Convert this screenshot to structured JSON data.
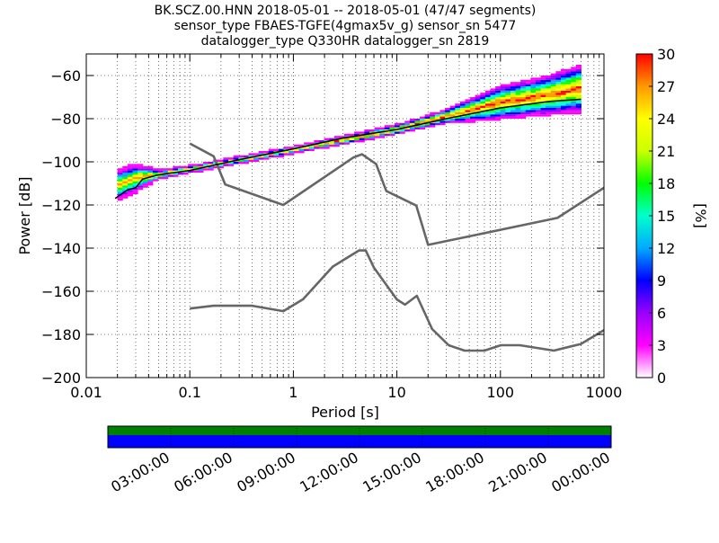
{
  "chart_data": {
    "type": "heatmap",
    "title_lines": [
      "BK.SCZ.00.HNN   2018-05-01 -- 2018-05-01  (47/47 segments)",
      "sensor_type FBAES-TGFE(4gmax5v_g) sensor_sn 5477",
      "datalogger_type Q330HR datalogger_sn 2819"
    ],
    "xlabel": "Period [s]",
    "ylabel": "Power [dB]",
    "xscale": "log",
    "xlim": [
      0.01,
      1000
    ],
    "ylim": [
      -200,
      -50
    ],
    "x_tick_labels": [
      "0.01",
      "0.1",
      "1",
      "10",
      "100",
      "1000"
    ],
    "x_tick_values": [
      0.01,
      0.1,
      1,
      10,
      100,
      1000
    ],
    "y_tick_labels": [
      "−200",
      "−180",
      "−160",
      "−140",
      "−120",
      "−100",
      "−80",
      "−60"
    ],
    "y_tick_values": [
      -200,
      -180,
      -160,
      -140,
      -120,
      -100,
      -80,
      -60
    ],
    "grid": "dotted, vertical at log minor ticks",
    "colorbar": {
      "label": "[%]",
      "range": [
        0,
        30
      ],
      "tick_labels": [
        "0",
        "3",
        "6",
        "9",
        "12",
        "15",
        "18",
        "21",
        "24",
        "27",
        "30"
      ],
      "tick_values": [
        0,
        3,
        6,
        9,
        12,
        15,
        18,
        21,
        24,
        27,
        30
      ],
      "colormap": [
        "#ffffff",
        "#ff00ff",
        "#9900ff",
        "#0000ff",
        "#00aaff",
        "#00ffcc",
        "#00ff00",
        "#ccff00",
        "#ffff00",
        "#ff9900",
        "#ff0000"
      ]
    },
    "series": [
      {
        "role": "upper-noise-model",
        "color": "#666666",
        "x": [
          0.1,
          0.17,
          0.22,
          0.8,
          3.8,
          4.6,
          6.3,
          7.9,
          15.4,
          20,
          354.8,
          1000
        ],
        "y": [
          -91.5,
          -97.4,
          -110.5,
          -120,
          -98,
          -96.5,
          -101,
          -113.5,
          -120.3,
          -138.5,
          -126,
          -112
        ]
      },
      {
        "role": "lower-noise-model",
        "color": "#666666",
        "x": [
          0.1,
          0.17,
          0.4,
          0.8,
          1.24,
          2.4,
          4.3,
          5,
          6,
          10,
          12,
          15.6,
          21.9,
          31.6,
          45,
          70,
          101,
          154,
          328,
          600,
          1000
        ],
        "y": [
          -168,
          -166.7,
          -166.7,
          -169.2,
          -163.7,
          -148.6,
          -141.1,
          -141.1,
          -149,
          -163.8,
          -166.2,
          -162.1,
          -177.5,
          -185,
          -187.5,
          -187.5,
          -185,
          -185,
          -187.5,
          -184.4,
          -178
        ]
      },
      {
        "role": "mode-psd",
        "color": "#000000",
        "x": [
          0.019,
          0.025,
          0.03,
          0.035,
          0.05,
          0.1,
          0.3,
          1,
          3,
          10,
          30,
          100,
          300,
          600
        ],
        "y": [
          -117,
          -113,
          -112,
          -108,
          -106,
          -104,
          -99,
          -94,
          -89,
          -85,
          -80,
          -75,
          -72,
          -71
        ]
      }
    ],
    "psd_band_summary": [
      {
        "period": 0.02,
        "power_min": -118,
        "power_max": -104
      },
      {
        "period": 0.03,
        "power_min": -114,
        "power_max": -101
      },
      {
        "period": 0.05,
        "power_min": -108,
        "power_max": -104
      },
      {
        "period": 0.1,
        "power_min": -105,
        "power_max": -102
      },
      {
        "period": 1,
        "power_min": -96,
        "power_max": -93
      },
      {
        "period": 10,
        "power_min": -87,
        "power_max": -83
      },
      {
        "period": 30,
        "power_min": -82,
        "power_max": -76
      },
      {
        "period": 100,
        "power_min": -80,
        "power_max": -65
      },
      {
        "period": 300,
        "power_min": -78,
        "power_max": -60
      },
      {
        "period": 600,
        "power_min": -77,
        "power_max": -55
      }
    ]
  },
  "timeline": {
    "tick_labels": [
      "03:00:00",
      "06:00:00",
      "09:00:00",
      "12:00:00",
      "15:00:00",
      "18:00:00",
      "21:00:00",
      "00:00:00"
    ],
    "coverage_colors": {
      "data": "#008000",
      "gaps_top": "#0000ff"
    },
    "coverage_fraction": 1.0
  }
}
